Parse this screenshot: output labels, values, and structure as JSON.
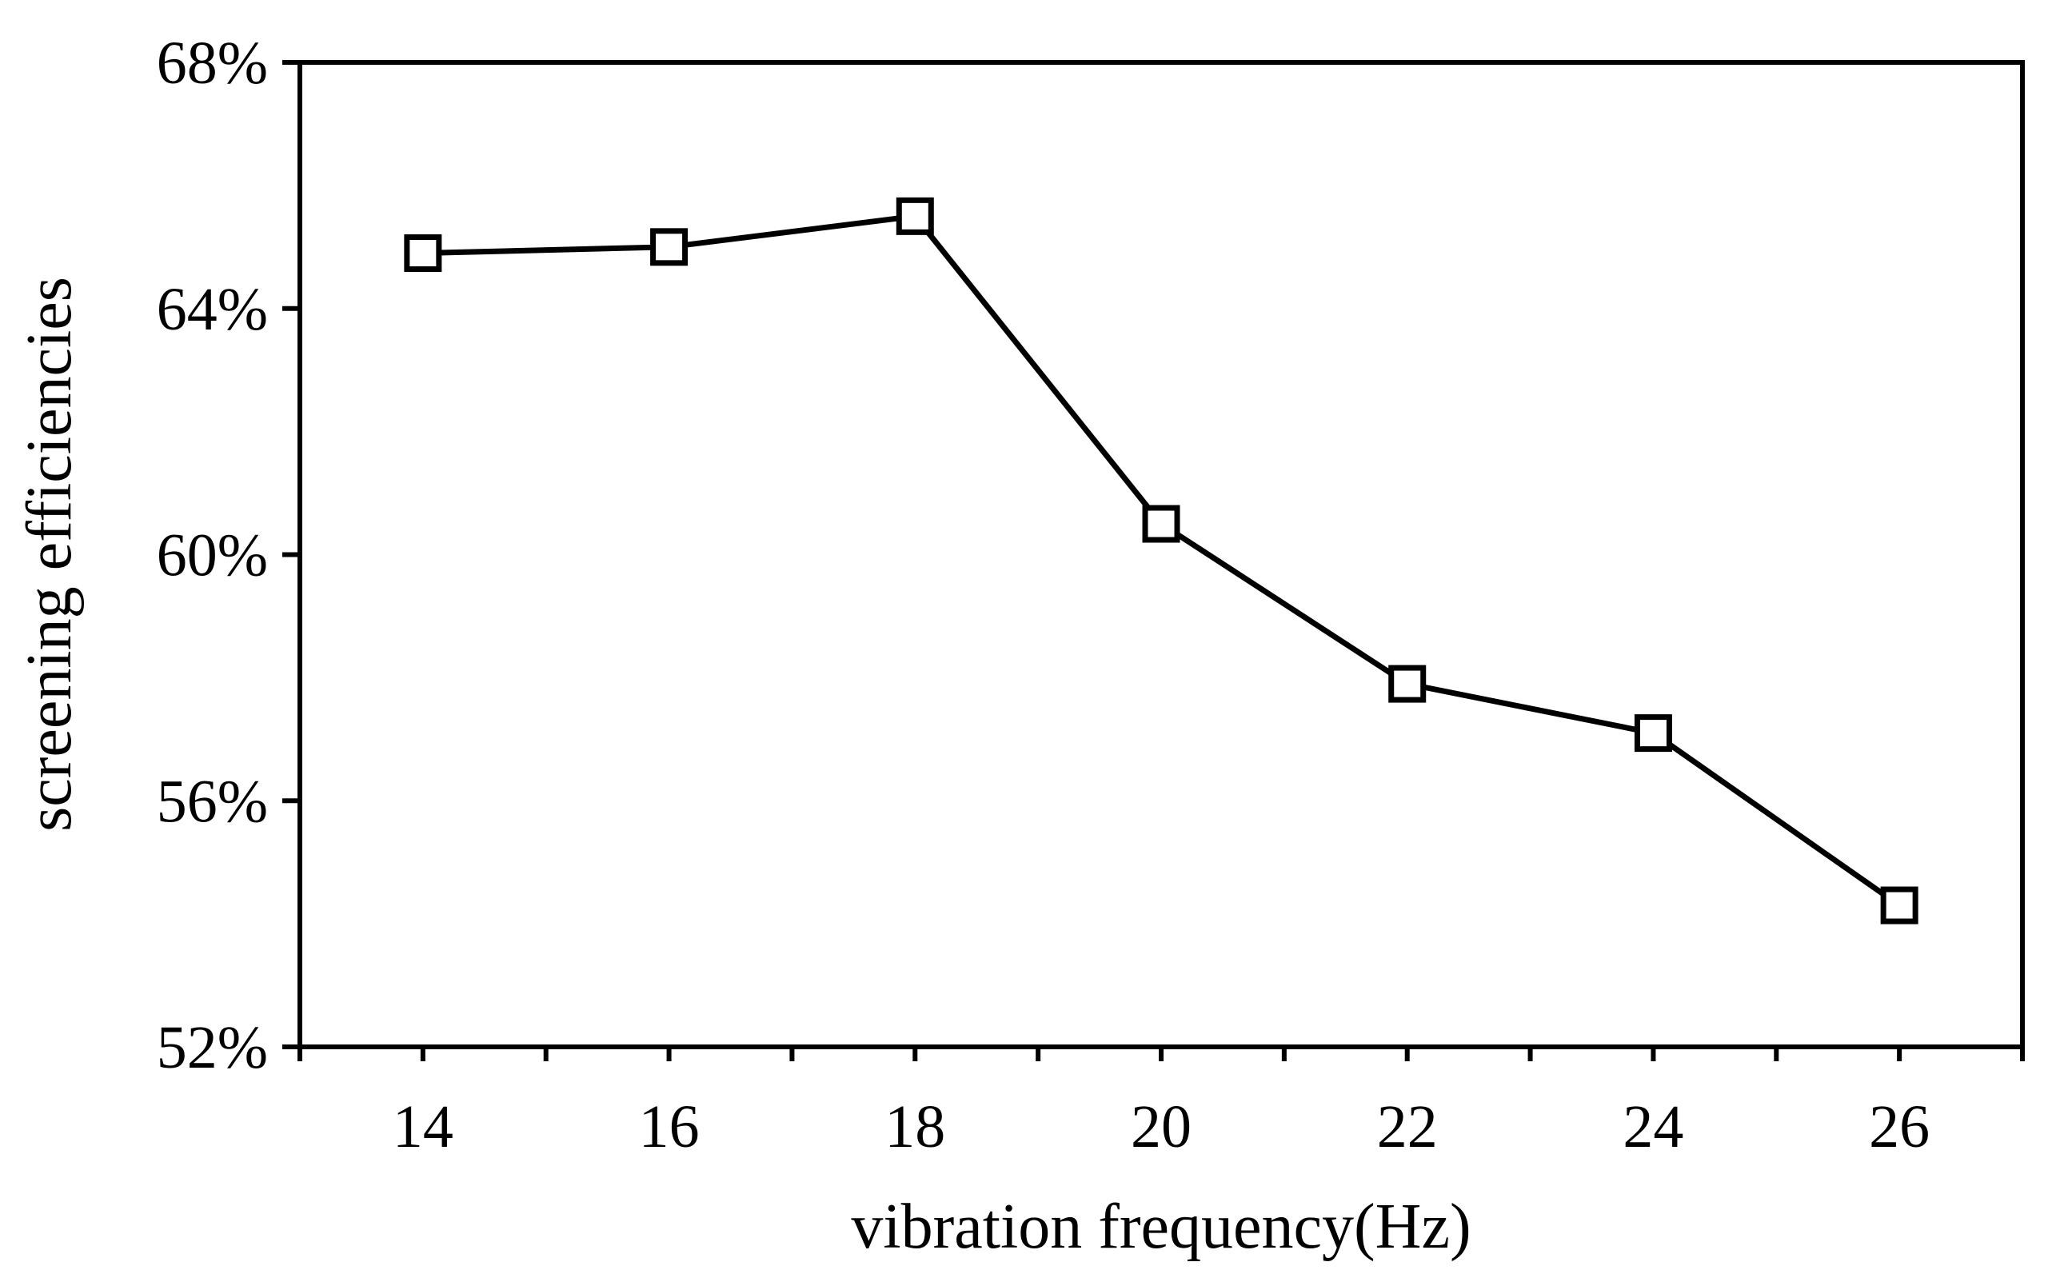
{
  "chart_data": {
    "type": "line",
    "title": "",
    "xlabel": "vibration frequency(Hz)",
    "ylabel": "screening efficiencies",
    "x": [
      14,
      16,
      18,
      20,
      22,
      24,
      26
    ],
    "xlim": [
      13,
      27
    ],
    "x_tick_labels": [
      "14",
      "16",
      "18",
      "20",
      "22",
      "24",
      "26"
    ],
    "ylim": [
      52,
      68
    ],
    "y_ticks": [
      52,
      56,
      60,
      64,
      68
    ],
    "y_tick_labels": [
      "52%",
      "56%",
      "60%",
      "64%",
      "68%"
    ],
    "grid": false,
    "series": [
      {
        "name": "screening efficiency",
        "marker": "open-square",
        "values": [
          64.9,
          65.0,
          65.5,
          60.5,
          57.9,
          57.1,
          54.3
        ]
      }
    ]
  }
}
